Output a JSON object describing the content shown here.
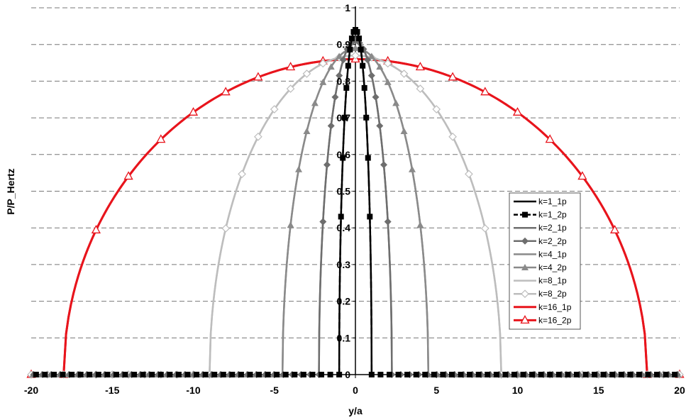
{
  "chart_data": {
    "type": "line",
    "xlabel": "y/a",
    "ylabel": "P/P_Hertz",
    "xlim": [
      -20,
      20
    ],
    "ylim": [
      0,
      1
    ],
    "xticks": [
      -20,
      -15,
      -10,
      -5,
      0,
      5,
      10,
      15,
      20
    ],
    "yticks": [
      0,
      0.1,
      0.2,
      0.3,
      0.4,
      0.5,
      0.6,
      0.7,
      0.8,
      0.9,
      1
    ],
    "ytick_labels": [
      "0",
      "0.1",
      "0.2",
      "0.3",
      "0.4",
      "0.5",
      "0.6",
      "0.7",
      "0.8",
      "0.9",
      "1"
    ],
    "grid": "horizontal dashed",
    "legend_position": "right",
    "series": [
      {
        "name": "k=1_1p",
        "color": "#000000",
        "marker": "none",
        "half_width": 1.0,
        "peak": 0.94
      },
      {
        "name": "k=1_2p",
        "color": "#000000",
        "marker": "square",
        "dashed": true,
        "half_width": 1.0,
        "peak": 0.94
      },
      {
        "name": "k=2_1p",
        "color": "#6e6e6e",
        "marker": "none",
        "half_width": 2.25,
        "peak": 0.91
      },
      {
        "name": "k=2_2p",
        "color": "#6e6e6e",
        "marker": "diamond",
        "half_width": 2.25,
        "peak": 0.91
      },
      {
        "name": "k=4_1p",
        "color": "#8a8a8a",
        "marker": "none",
        "half_width": 4.5,
        "peak": 0.89
      },
      {
        "name": "k=4_2p",
        "color": "#8a8a8a",
        "marker": "triangle",
        "half_width": 4.5,
        "peak": 0.89
      },
      {
        "name": "k=8_1p",
        "color": "#bdbdbd",
        "marker": "none",
        "half_width": 9.0,
        "peak": 0.87
      },
      {
        "name": "k=8_2p",
        "color": "#bdbdbd",
        "marker": "diamond-open",
        "half_width": 9.0,
        "peak": 0.87
      },
      {
        "name": "k=16_1p",
        "color": "#e8141c",
        "marker": "none",
        "half_width": 18.0,
        "peak": 0.86
      },
      {
        "name": "k=16_2p",
        "color": "#e8141c",
        "marker": "triangle-open",
        "half_width": 18.0,
        "peak": 0.86
      }
    ]
  }
}
